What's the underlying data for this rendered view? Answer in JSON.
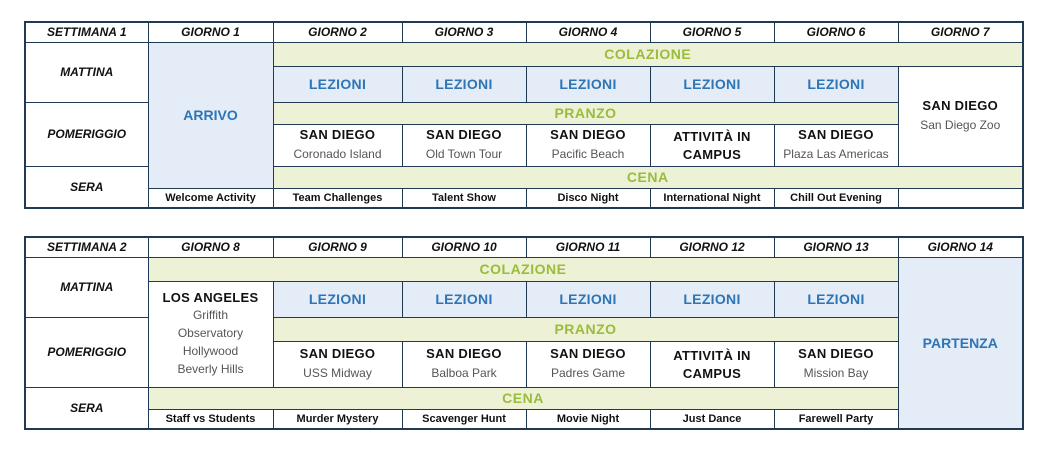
{
  "week1": {
    "week_label": "SETTIMANA 1",
    "days": [
      "GIORNO 1",
      "GIORNO 2",
      "GIORNO 3",
      "GIORNO 4",
      "GIORNO 5",
      "GIORNO 6",
      "GIORNO 7"
    ],
    "rows": {
      "morning": "MATTINA",
      "afternoon": "POMERIGGIO",
      "evening": "SERA"
    },
    "arrival": "ARRIVO",
    "breakfast": "COLAZIONE",
    "lunch": "PRANZO",
    "dinner": "CENA",
    "lessons": [
      "LEZIONI",
      "LEZIONI",
      "LEZIONI",
      "LEZIONI",
      "LEZIONI"
    ],
    "day7": {
      "title": "SAN DIEGO",
      "sub": "San Diego Zoo"
    },
    "afternoon_cells": [
      {
        "title": "SAN DIEGO",
        "sub": "Coronado Island"
      },
      {
        "title": "SAN DIEGO",
        "sub": "Old Town Tour"
      },
      {
        "title": "SAN DIEGO",
        "sub": "Pacific Beach"
      },
      {
        "title": "ATTIVITÀ IN",
        "sub": "CAMPUS"
      },
      {
        "title": "SAN DIEGO",
        "sub": "Plaza Las Americas"
      }
    ],
    "evening": [
      "Welcome Activity",
      "Team Challenges",
      "Talent Show",
      "Disco Night",
      "International Night",
      "Chill Out Evening"
    ]
  },
  "week2": {
    "week_label": "SETTIMANA 2",
    "days": [
      "GIORNO 8",
      "GIORNO 9",
      "GIORNO 10",
      "GIORNO 11",
      "GIORNO 12",
      "GIORNO 13",
      "GIORNO 14"
    ],
    "rows": {
      "morning": "MATTINA",
      "afternoon": "POMERIGGIO",
      "evening": "SERA"
    },
    "departure": "PARTENZA",
    "breakfast": "COLAZIONE",
    "lunch": "PRANZO",
    "dinner": "CENA",
    "day8": {
      "title": "LOS ANGELES",
      "lines": [
        "Griffith",
        "Observatory",
        "Hollywood",
        "Beverly Hills"
      ]
    },
    "lessons": [
      "LEZIONI",
      "LEZIONI",
      "LEZIONI",
      "LEZIONI",
      "LEZIONI"
    ],
    "afternoon_cells": [
      {
        "title": "SAN DIEGO",
        "sub": "USS Midway"
      },
      {
        "title": "SAN DIEGO",
        "sub": "Balboa Park"
      },
      {
        "title": "SAN DIEGO",
        "sub": "Padres Game"
      },
      {
        "title": "ATTIVITÀ IN",
        "sub": "CAMPUS"
      },
      {
        "title": "SAN DIEGO",
        "sub": "Mission Bay"
      }
    ],
    "evening": [
      "Staff vs Students",
      "Murder Mystery",
      "Scavenger Hunt",
      "Movie Night",
      "Just Dance",
      "Farewell Party"
    ]
  }
}
